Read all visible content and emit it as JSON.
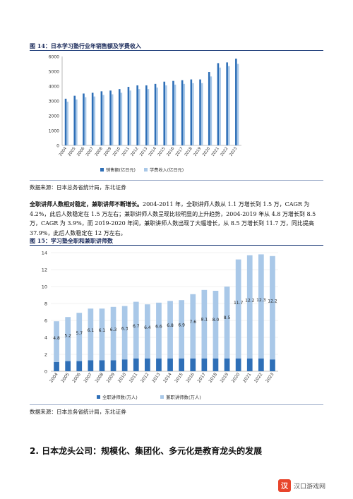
{
  "figure14": {
    "title": "图 14：日本学习塾行业年销售额及学费收入",
    "source": "数据来源：日本总务省统计局，东北证券"
  },
  "figure15": {
    "title": "图 15：学习塾全职和兼职讲师数",
    "source": "数据来源：日本总务省统计局，东北证券"
  },
  "paragraph": {
    "lead": "全职讲师人数相对稳定，兼职讲师不断增长。",
    "body": "2004-2011 年，全职讲师人数从 1.1 万增长到 1.5 万，CAGR 为 4.2%，此后人数稳定在 1.5 万左右；兼职讲师人数呈现比较明显的上升趋势，2004-2019 年从 4.8 万增长到 8.5 万，CAGR 为 3.9%，而 2019-2020 年间，兼职讲师人数出现了大幅增长，从 8.5 万增长到 11.7 万，同比提高37.9%，此后人数稳定在 12 万左右。"
  },
  "section_heading": "2.  日本龙头公司：规模化、集团化、多元化是教育龙头的发展",
  "watermark": "汉口游戏网",
  "colors": {
    "dark_blue": "#2e6fb7",
    "light_blue": "#a9c8e8",
    "title_navy": "#1a2a5a",
    "rule_navy": "#1f3d7a"
  },
  "chart_data": [
    {
      "type": "bar",
      "categories": [
        "2004",
        "2005",
        "2006",
        "2007",
        "2008",
        "2009",
        "2010",
        "2011",
        "2012",
        "2013",
        "2014",
        "2015",
        "2016",
        "2017",
        "2018",
        "2019",
        "2020",
        "2021",
        "2022",
        "2023"
      ],
      "series": [
        {
          "name": "销售额(亿日元)",
          "values": [
            3150,
            3350,
            3500,
            3550,
            3650,
            3700,
            3800,
            3950,
            4050,
            4050,
            4150,
            4300,
            4350,
            4400,
            4450,
            4450,
            4950,
            5550,
            5600,
            5850
          ]
        },
        {
          "name": "学费收入(亿日元)",
          "values": [
            2950,
            3100,
            3250,
            3300,
            3400,
            3450,
            3550,
            3700,
            3800,
            3800,
            3900,
            4050,
            4100,
            4150,
            4200,
            4200,
            4650,
            5250,
            5350,
            5500
          ]
        }
      ],
      "ylim": [
        0,
        6000
      ],
      "yticks": [
        "0",
        "1000",
        "2000",
        "3000",
        "4000",
        "5000",
        "6000"
      ],
      "legend_position": "bottom",
      "grid": false
    },
    {
      "type": "bar",
      "stacked": true,
      "categories": [
        "2004",
        "2005",
        "2006",
        "2007",
        "2008",
        "2009",
        "2010",
        "2011",
        "2012",
        "2013",
        "2014",
        "2015",
        "2016",
        "2017",
        "2018",
        "2019",
        "2020",
        "2021",
        "2022",
        "2023"
      ],
      "series": [
        {
          "name": "全职讲师数(万人)",
          "values": [
            1.1,
            1.2,
            1.2,
            1.3,
            1.3,
            1.3,
            1.4,
            1.5,
            1.5,
            1.5,
            1.5,
            1.5,
            1.5,
            1.5,
            1.5,
            1.5,
            1.5,
            1.5,
            1.5,
            1.4
          ]
        },
        {
          "name": "兼职讲师数(万人)",
          "values": [
            4.8,
            5.2,
            5.7,
            6.1,
            6.1,
            6.3,
            6.3,
            6.7,
            6.4,
            6.6,
            6.8,
            6.9,
            7.6,
            8.1,
            8.0,
            8.5,
            11.7,
            12.2,
            12.3,
            12.2
          ]
        }
      ],
      "part_time_labels": [
        "4.8",
        "5.2",
        "5.7",
        "6.1",
        "6.1",
        "6.3",
        "6.3",
        "6.7",
        "6.4",
        "6.6",
        "6.8",
        "6.9",
        "7.6",
        "8.1",
        "8.0",
        "8.5",
        "11.7",
        "12.2",
        "12.3",
        "12.2"
      ],
      "ylim": [
        0,
        14
      ],
      "yticks": [
        "0",
        "2",
        "4",
        "6",
        "8",
        "10",
        "12",
        "14"
      ],
      "legend_position": "bottom",
      "grid": true
    }
  ]
}
